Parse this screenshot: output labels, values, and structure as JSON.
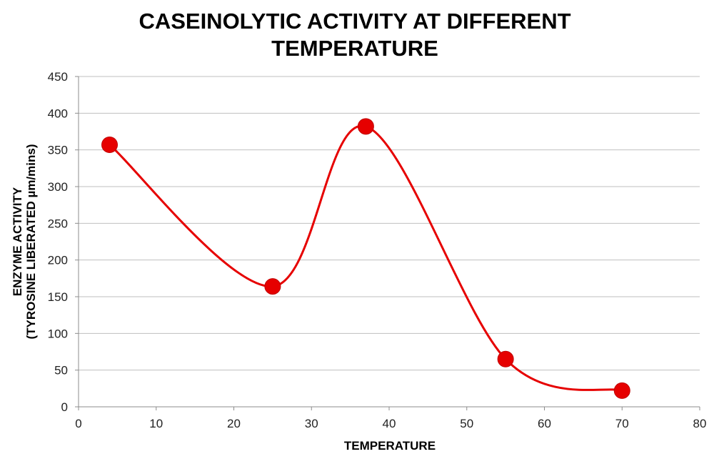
{
  "chart_data": {
    "type": "scatter",
    "title_lines": [
      "CASEINOLYTIC ACTIVITY AT DIFFERENT",
      "TEMPERATURE"
    ],
    "xlabel": "TEMPERATURE",
    "ylabel_lines": [
      "ENZYME ACTIVITY",
      "(TYROSINE LIBERATED µm/mins)"
    ],
    "xlim": [
      0,
      80
    ],
    "ylim": [
      0,
      450
    ],
    "x_ticks": [
      0,
      10,
      20,
      30,
      40,
      50,
      60,
      70,
      80
    ],
    "y_ticks": [
      0,
      50,
      100,
      150,
      200,
      250,
      300,
      350,
      400,
      450
    ],
    "grid": "horizontal",
    "smoothed_line": true,
    "series": [
      {
        "x": [
          4,
          25,
          37,
          55,
          70
        ],
        "y": [
          357,
          164,
          382,
          65,
          22
        ],
        "color": "#e60000"
      }
    ]
  }
}
